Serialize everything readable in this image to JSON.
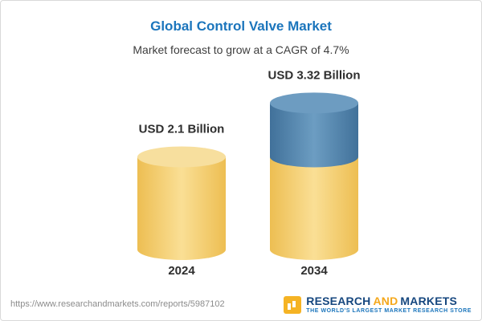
{
  "header": {
    "title": "Global Control Valve Market",
    "subtitle": "Market forecast to grow at a CAGR of 4.7%"
  },
  "chart_data": {
    "type": "bar",
    "variant": "3d-cylinder",
    "title": "Global Control Valve Market",
    "subtitle": "Market forecast to grow at a CAGR of 4.7%",
    "categories": [
      "2024",
      "2034"
    ],
    "values": [
      2.1,
      3.32
    ],
    "unit": "USD Billion",
    "value_labels": [
      "USD 2.1 Billion",
      "USD 3.32 Billion"
    ],
    "cagr": "4.7%",
    "legend": false,
    "xlabel": "",
    "ylabel": "",
    "segments": [
      [
        {
          "value": 2.1,
          "color": "gold"
        }
      ],
      [
        {
          "value": 2.1,
          "color": "gold"
        },
        {
          "value": 1.22,
          "color": "blue"
        }
      ]
    ],
    "gradients": {
      "gold": {
        "edge": "#EDBE52",
        "mid": "#FADF95",
        "top": "#F7DF9E"
      },
      "blue": {
        "edge": "#41719A",
        "mid": "#6C9DC2",
        "top": "#6D9CC1"
      }
    }
  },
  "footer": {
    "url": "https://www.researchandmarkets.com/reports/5987102",
    "logo": {
      "research": "RESEARCH",
      "and": "AND",
      "markets": "MARKETS",
      "tagline": "THE WORLD'S LARGEST MARKET RESEARCH STORE",
      "brand_navy": "#16477F",
      "brand_gold": "#F5A81C",
      "brand_blue": "#1B75BC"
    }
  }
}
